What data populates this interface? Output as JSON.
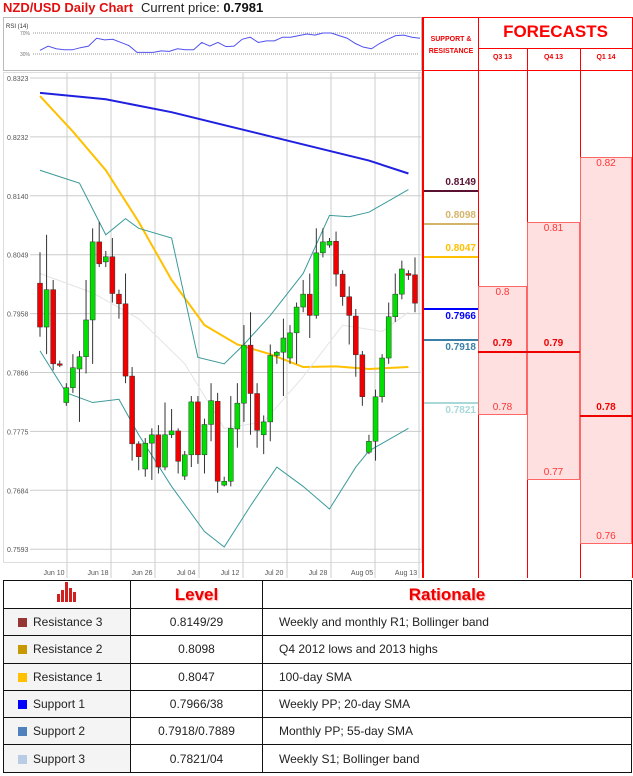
{
  "header": {
    "title": "NZD/USD Daily Chart",
    "price_label": "Current price:",
    "price_value": "0.7981"
  },
  "rsi": {
    "label": "RSI (14)",
    "levels": [
      "70%",
      "30%"
    ],
    "line_color": "#5050f0",
    "values": [
      37,
      45,
      40,
      38,
      38,
      42,
      45,
      60,
      57,
      58,
      52,
      46,
      33,
      33,
      33,
      36,
      35,
      40,
      38,
      38,
      52,
      45,
      52,
      44,
      45,
      58,
      62,
      52,
      55,
      55,
      62,
      62,
      65,
      68,
      66,
      70,
      70,
      65,
      60,
      50,
      43,
      40,
      50,
      58,
      65,
      66,
      62,
      60
    ]
  },
  "chart_data": {
    "type": "candlestick",
    "ylim": [
      0.7593,
      0.8323
    ],
    "y_ticks": [
      "0.8323",
      "0.8232",
      "0.8140",
      "0.8049",
      "0.7958",
      "0.7866",
      "0.7775",
      "0.7684",
      "0.7593"
    ],
    "x_ticks": [
      "Jun 10",
      "Jun 18",
      "Jun 26",
      "Jul 04",
      "Jul 12",
      "Jul 20",
      "Jul 28",
      "Aug 05",
      "Aug 13"
    ],
    "grid": true,
    "colors": {
      "up": "#00e000",
      "down": "#f00000"
    },
    "ohlc": [
      [
        0.8005,
        0.8053,
        0.7922,
        0.7937
      ],
      [
        0.7937,
        0.808,
        0.7895,
        0.7995
      ],
      [
        0.7995,
        0.801,
        0.787,
        0.788
      ],
      [
        0.788,
        0.7885,
        0.7875,
        0.7878
      ],
      [
        0.782,
        0.785,
        0.7815,
        0.7843
      ],
      [
        0.7843,
        0.7895,
        0.7835,
        0.7874
      ],
      [
        0.7872,
        0.79,
        0.779,
        0.7891
      ],
      [
        0.7891,
        0.801,
        0.7865,
        0.7948
      ],
      [
        0.7948,
        0.809,
        0.788,
        0.8069
      ],
      [
        0.8069,
        0.81,
        0.803,
        0.8035
      ],
      [
        0.8038,
        0.8055,
        0.803,
        0.8046
      ],
      [
        0.8046,
        0.8075,
        0.7975,
        0.7989
      ],
      [
        0.7988,
        0.7995,
        0.795,
        0.7973
      ],
      [
        0.7973,
        0.802,
        0.785,
        0.7861
      ],
      [
        0.7861,
        0.7875,
        0.773,
        0.7756
      ],
      [
        0.7756,
        0.776,
        0.7715,
        0.7736
      ],
      [
        0.7717,
        0.7765,
        0.7705,
        0.7757
      ],
      [
        0.7757,
        0.778,
        0.77,
        0.777
      ],
      [
        0.777,
        0.7785,
        0.771,
        0.772
      ],
      [
        0.772,
        0.782,
        0.7715,
        0.777
      ],
      [
        0.777,
        0.781,
        0.7765,
        0.7776
      ],
      [
        0.7776,
        0.778,
        0.771,
        0.7729
      ],
      [
        0.7706,
        0.7745,
        0.77,
        0.7739
      ],
      [
        0.7739,
        0.783,
        0.772,
        0.7821
      ],
      [
        0.7821,
        0.783,
        0.7725,
        0.7739
      ],
      [
        0.7739,
        0.7795,
        0.771,
        0.7786
      ],
      [
        0.7786,
        0.785,
        0.776,
        0.7823
      ],
      [
        0.7822,
        0.7835,
        0.768,
        0.7698
      ],
      [
        0.7692,
        0.7705,
        0.769,
        0.7698
      ],
      [
        0.7698,
        0.783,
        0.769,
        0.778
      ],
      [
        0.7779,
        0.785,
        0.775,
        0.7819
      ],
      [
        0.7819,
        0.794,
        0.779,
        0.7909
      ],
      [
        0.7909,
        0.796,
        0.777,
        0.7834
      ],
      [
        0.7834,
        0.785,
        0.775,
        0.7777
      ],
      [
        0.777,
        0.78,
        0.774,
        0.779
      ],
      [
        0.779,
        0.791,
        0.776,
        0.7893
      ],
      [
        0.7893,
        0.79,
        0.788,
        0.7898
      ],
      [
        0.7898,
        0.795,
        0.783,
        0.792
      ],
      [
        0.7889,
        0.794,
        0.788,
        0.7928
      ],
      [
        0.7928,
        0.7975,
        0.788,
        0.7968
      ],
      [
        0.7968,
        0.801,
        0.796,
        0.7988
      ],
      [
        0.7988,
        0.802,
        0.792,
        0.7955
      ],
      [
        0.7955,
        0.809,
        0.795,
        0.8052
      ],
      [
        0.8052,
        0.809,
        0.8045,
        0.8069
      ],
      [
        0.8064,
        0.8075,
        0.806,
        0.807
      ],
      [
        0.807,
        0.8085,
        0.8,
        0.8019
      ],
      [
        0.8019,
        0.8025,
        0.797,
        0.7984
      ],
      [
        0.7984,
        0.8,
        0.791,
        0.7955
      ],
      [
        0.7954,
        0.7965,
        0.786,
        0.7894
      ],
      [
        0.7894,
        0.79,
        0.7815,
        0.7829
      ],
      [
        0.7743,
        0.777,
        0.774,
        0.776
      ],
      [
        0.776,
        0.784,
        0.773,
        0.7829
      ],
      [
        0.7829,
        0.7895,
        0.782,
        0.7889
      ],
      [
        0.7889,
        0.7975,
        0.788,
        0.7953
      ],
      [
        0.7953,
        0.802,
        0.7945,
        0.7988
      ],
      [
        0.7988,
        0.804,
        0.798,
        0.8027
      ],
      [
        0.802,
        0.8025,
        0.801,
        0.8017
      ],
      [
        0.8018,
        0.8045,
        0.796,
        0.7974
      ]
    ],
    "lines": [
      {
        "color": "#2020e0",
        "points": [
          [
            0,
            0.83
          ],
          [
            10,
            0.829
          ],
          [
            20,
            0.827
          ],
          [
            30,
            0.8245
          ],
          [
            40,
            0.822
          ],
          [
            50,
            0.8195
          ],
          [
            56,
            0.8175
          ]
        ]
      },
      {
        "color": "#ffc000",
        "points": [
          [
            0,
            0.8295
          ],
          [
            5,
            0.824
          ],
          [
            10,
            0.818
          ],
          [
            15,
            0.81
          ],
          [
            20,
            0.801
          ],
          [
            25,
            0.794
          ],
          [
            30,
            0.791
          ],
          [
            35,
            0.7895
          ],
          [
            40,
            0.7875
          ],
          [
            45,
            0.7876
          ],
          [
            50,
            0.7872
          ],
          [
            56,
            0.7875
          ]
        ]
      },
      {
        "color": "#3a9a9a",
        "points": [
          [
            0,
            0.818
          ],
          [
            3,
            0.817
          ],
          [
            6,
            0.816
          ],
          [
            10,
            0.808
          ],
          [
            13,
            0.8105
          ],
          [
            15,
            0.809
          ],
          [
            20,
            0.8075
          ],
          [
            24,
            0.789
          ],
          [
            28,
            0.788
          ],
          [
            31,
            0.791
          ],
          [
            35,
            0.7955
          ],
          [
            40,
            0.802
          ],
          [
            44,
            0.811
          ],
          [
            47,
            0.8108
          ],
          [
            50,
            0.8115
          ],
          [
            56,
            0.815
          ]
        ]
      },
      {
        "color": "#3a9a9a",
        "points": [
          [
            0,
            0.79
          ],
          [
            4,
            0.7835
          ],
          [
            8,
            0.782
          ],
          [
            12,
            0.7825
          ],
          [
            15,
            0.777
          ],
          [
            20,
            0.769
          ],
          [
            25,
            0.762
          ],
          [
            28,
            0.7596
          ],
          [
            32,
            0.766
          ],
          [
            36,
            0.772
          ],
          [
            40,
            0.769
          ],
          [
            44,
            0.7655
          ],
          [
            48,
            0.772
          ],
          [
            50,
            0.7745
          ],
          [
            56,
            0.778
          ]
        ]
      },
      {
        "color": "#e4e4e4",
        "points": [
          [
            0,
            0.802
          ],
          [
            8,
            0.799
          ],
          [
            15,
            0.795
          ],
          [
            22,
            0.788
          ],
          [
            28,
            0.778
          ],
          [
            34,
            0.779
          ],
          [
            40,
            0.786
          ],
          [
            46,
            0.794
          ],
          [
            52,
            0.793
          ],
          [
            56,
            0.796
          ]
        ]
      }
    ]
  },
  "sr": {
    "header": "SUPPORT & RESISTANCE",
    "levels": [
      {
        "value": "0.8149",
        "price": 0.8149,
        "color": "#5a1030",
        "below": false
      },
      {
        "value": "0.8098",
        "price": 0.8098,
        "color": "#d4b46a",
        "below": false
      },
      {
        "value": "0.8047",
        "price": 0.8047,
        "color": "#ffc000",
        "below": false
      },
      {
        "value": "0.7966",
        "price": 0.7966,
        "color": "#0000ff",
        "below": true
      },
      {
        "value": "0.7918",
        "price": 0.7918,
        "color": "#3a7fa8",
        "below": true
      },
      {
        "value": "0.7821",
        "price": 0.7821,
        "color": "#a8d8d8",
        "below": true
      }
    ]
  },
  "forecasts": {
    "title": "FORECASTS",
    "quarters": [
      {
        "label": "Q3 13",
        "high": "0.8",
        "mid": "0.79",
        "low": "0.78"
      },
      {
        "label": "Q4 13",
        "high": "0.81",
        "mid": "0.79",
        "low": "0.77"
      },
      {
        "label": "Q1 14",
        "high": "0.82",
        "mid": "0.78",
        "low": "0.76"
      }
    ]
  },
  "table": {
    "icon": "bar-chart-icon",
    "col_level": "Level",
    "col_rationale": "Rationale",
    "rows": [
      {
        "name": "Resistance 3",
        "color": "#943634",
        "level": "0.8149/29",
        "rationale": "Weekly and monthly R1; Bollinger band"
      },
      {
        "name": "Resistance 2",
        "color": "#c89800",
        "level": "0.8098",
        "rationale": "Q4 2012 lows and 2013 highs"
      },
      {
        "name": "Resistance 1",
        "color": "#ffc000",
        "level": "0.8047",
        "rationale": "100-day SMA"
      },
      {
        "name": "Support 1",
        "color": "#0000ff",
        "level": "0.7966/38",
        "rationale": "Weekly PP; 20-day SMA"
      },
      {
        "name": "Support 2",
        "color": "#4f81bd",
        "level": "0.7918/0.7889",
        "rationale": "Monthly PP; 55-day SMA"
      },
      {
        "name": "Support 3",
        "color": "#b8cce4",
        "level": "0.7821/04",
        "rationale": "Weekly S1; Bollinger band"
      }
    ]
  }
}
